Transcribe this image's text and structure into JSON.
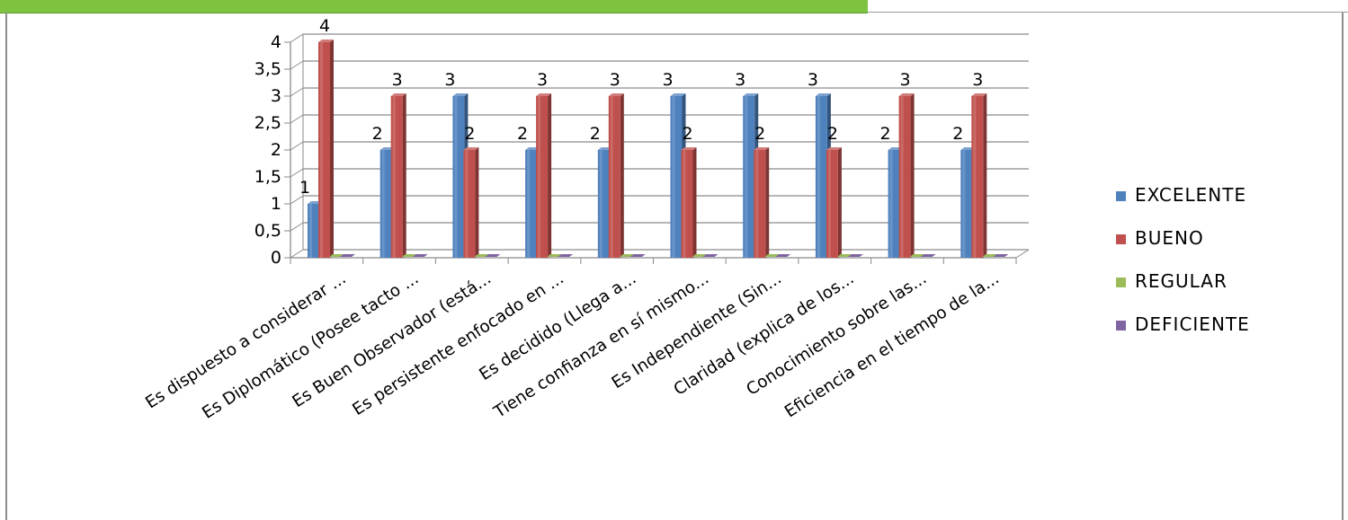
{
  "chart_data": {
    "type": "bar",
    "categories": [
      "Es dispuesto a considerar ...",
      "Es Diplomático (Posee tacto ...",
      "Es Buen Observador (está...",
      "Es persistente enfocado en ...",
      "Es decidido (Llega a...",
      "Tiene confianza en sí mismo...",
      "Es Independiente (Sin...",
      "Claridad (explica de los...",
      "Conocimiento sobre las...",
      "Eficiencia en el tiempo de la..."
    ],
    "series": [
      {
        "name": "EXCELENTE",
        "color": "#4f81bd",
        "values": [
          1,
          2,
          3,
          2,
          2,
          3,
          3,
          3,
          2,
          2
        ]
      },
      {
        "name": "BUENO",
        "color": "#c0504d",
        "values": [
          4,
          3,
          2,
          3,
          3,
          2,
          2,
          2,
          3,
          3
        ]
      },
      {
        "name": "REGULAR",
        "color": "#9bbb59",
        "values": [
          0,
          0,
          0,
          0,
          0,
          0,
          0,
          0,
          0,
          0
        ]
      },
      {
        "name": "DEFICIENTE",
        "color": "#8064a2",
        "values": [
          0,
          0,
          0,
          0,
          0,
          0,
          0,
          0,
          0,
          0
        ]
      }
    ],
    "data_labels": [
      {
        "category": 0,
        "series": 0,
        "text": "1"
      },
      {
        "category": 0,
        "series": 1,
        "text": "4"
      },
      {
        "category": 1,
        "series": 0,
        "text": "2"
      },
      {
        "category": 1,
        "series": 1,
        "text": "3"
      },
      {
        "category": 2,
        "series": 0,
        "text": "3"
      },
      {
        "category": 2,
        "series": 1,
        "text": "2"
      },
      {
        "category": 3,
        "series": 0,
        "text": "2"
      },
      {
        "category": 3,
        "series": 1,
        "text": "3"
      },
      {
        "category": 4,
        "series": 0,
        "text": "2"
      },
      {
        "category": 4,
        "series": 1,
        "text": "3"
      },
      {
        "category": 5,
        "series": 0,
        "text": "3"
      },
      {
        "category": 5,
        "series": 1,
        "text": "2"
      },
      {
        "category": 6,
        "series": 0,
        "text": "3"
      },
      {
        "category": 6,
        "series": 1,
        "text": "2"
      },
      {
        "category": 7,
        "series": 0,
        "text": "3"
      },
      {
        "category": 7,
        "series": 1,
        "text": "2"
      },
      {
        "category": 8,
        "series": 0,
        "text": "2"
      },
      {
        "category": 8,
        "series": 1,
        "text": "3"
      },
      {
        "category": 9,
        "series": 0,
        "text": "2"
      },
      {
        "category": 9,
        "series": 1,
        "text": "3"
      }
    ],
    "y_ticks": [
      "0",
      "0,5",
      "1",
      "1,5",
      "2",
      "2,5",
      "3",
      "3,5",
      "4"
    ],
    "ylim": [
      0,
      4
    ],
    "grid": true,
    "legend_position": "right",
    "title": "",
    "xlabel": "",
    "ylabel": ""
  }
}
